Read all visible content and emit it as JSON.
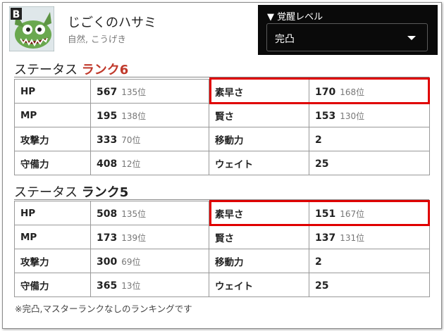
{
  "monster": {
    "badge": "B",
    "name": "じごくのハサミ",
    "subtitle": "自然, こうげき"
  },
  "awakening": {
    "label": "▼ 覚醒レベル",
    "selected": "完凸"
  },
  "sections": [
    {
      "title": "ステータス ",
      "rank": "ランク6",
      "rows": [
        [
          {
            "label": "HP",
            "value": "567",
            "rank": "135位"
          },
          {
            "label": "素早さ",
            "value": "170",
            "rank": "168位"
          }
        ],
        [
          {
            "label": "MP",
            "value": "195",
            "rank": "138位"
          },
          {
            "label": "賢さ",
            "value": "153",
            "rank": "130位"
          }
        ],
        [
          {
            "label": "攻撃力",
            "value": "333",
            "rank": "70位"
          },
          {
            "label": "移動力",
            "value": "2",
            "rank": ""
          }
        ],
        [
          {
            "label": "守備力",
            "value": "408",
            "rank": "12位"
          },
          {
            "label": "ウェイト",
            "value": "25",
            "rank": ""
          }
        ]
      ]
    },
    {
      "title": "ステータス ",
      "rank": "ランク5",
      "rows": [
        [
          {
            "label": "HP",
            "value": "508",
            "rank": "135位"
          },
          {
            "label": "素早さ",
            "value": "151",
            "rank": "167位"
          }
        ],
        [
          {
            "label": "MP",
            "value": "173",
            "rank": "139位"
          },
          {
            "label": "賢さ",
            "value": "137",
            "rank": "131位"
          }
        ],
        [
          {
            "label": "攻撃力",
            "value": "300",
            "rank": "69位"
          },
          {
            "label": "移動力",
            "value": "2",
            "rank": ""
          }
        ],
        [
          {
            "label": "守備力",
            "value": "365",
            "rank": "13位"
          },
          {
            "label": "ウェイト",
            "value": "25",
            "rank": ""
          }
        ]
      ]
    }
  ],
  "note": "※完凸,マスターランクなしのランキングです",
  "colors": {
    "highlight": "#e00000",
    "rank6": "#c0392b",
    "awaken_bg": "#0a0a0a"
  }
}
